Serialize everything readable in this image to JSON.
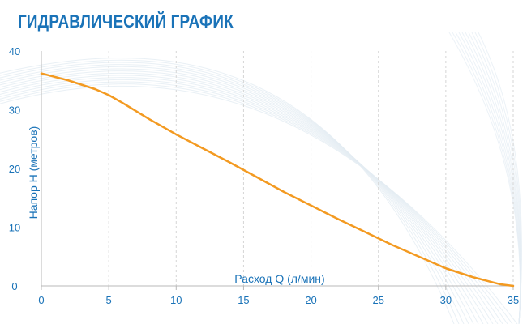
{
  "colors": {
    "title": "#1a73b8",
    "axis_text": "#1a73b8",
    "curve": "#f39a21",
    "grid": "#d6d6d6",
    "axis_line": "#b8b8b8",
    "swoosh": "#e4ecf3"
  },
  "chart_data": {
    "type": "line",
    "title": "ГИДРАВЛИЧЕСКИЙ ГРАФИК",
    "xlabel": "Расход Q (л/мин)",
    "ylabel": "Напор H (метров)",
    "xlim": [
      0,
      35
    ],
    "ylim": [
      0,
      40
    ],
    "x_ticks": [
      "0",
      "5",
      "10",
      "15",
      "20",
      "25",
      "30",
      "35"
    ],
    "y_ticks": [
      "0",
      "10",
      "20",
      "30",
      "40"
    ],
    "grid": "vertical dashed",
    "series": [
      {
        "x": [
          0,
          2,
          4,
          5,
          6,
          8,
          10,
          12,
          14,
          16,
          18,
          20,
          22,
          24,
          26,
          28,
          30,
          32,
          34,
          35
        ],
        "y": [
          36.2,
          35.0,
          33.5,
          32.5,
          31.2,
          28.4,
          25.8,
          23.4,
          21.0,
          18.5,
          16.0,
          13.7,
          11.4,
          9.2,
          7.0,
          5.0,
          3.0,
          1.5,
          0.3,
          0
        ]
      }
    ]
  }
}
